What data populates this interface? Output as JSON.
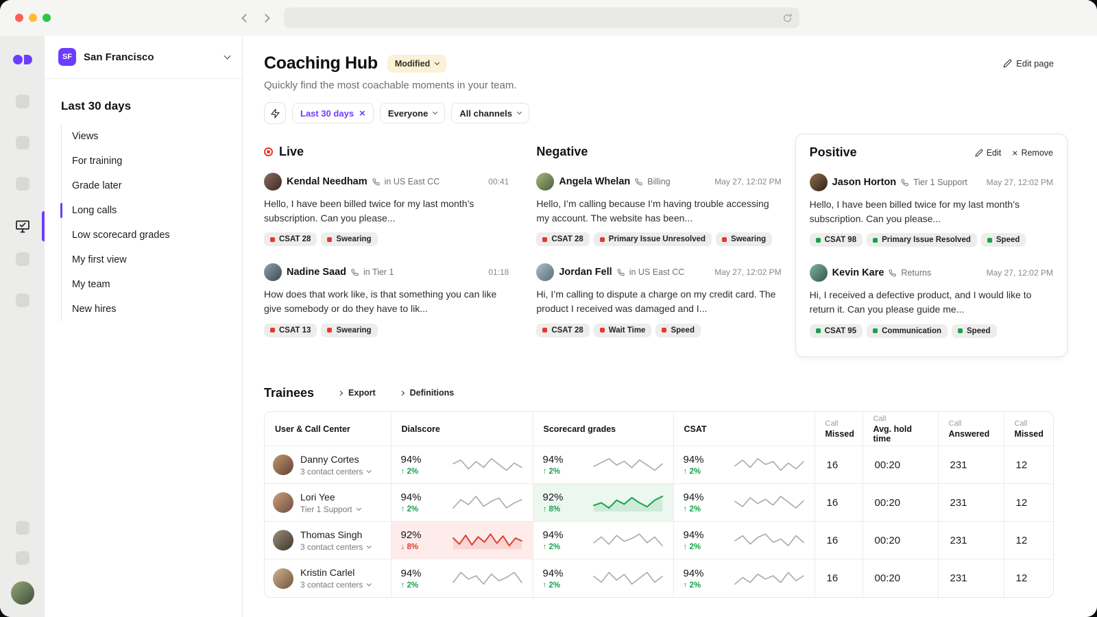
{
  "colors": {
    "accent": "#6C3DFF",
    "positive": "#17A24B",
    "negative": "#E23B2E",
    "warning_bg": "#FAF1D6"
  },
  "icons": {
    "close": "×",
    "up_arrow": "↑",
    "down_arrow": "↓"
  },
  "workspace": {
    "badge": "SF",
    "name": "San Francisco"
  },
  "sidebar": {
    "section_title": "Last 30 days",
    "items": [
      {
        "label": "Views"
      },
      {
        "label": "For training"
      },
      {
        "label": "Grade later"
      },
      {
        "label": "Long calls",
        "active": true
      },
      {
        "label": "Low scorecard grades"
      },
      {
        "label": "My first view"
      },
      {
        "label": "My team"
      },
      {
        "label": "New hires"
      }
    ]
  },
  "header": {
    "title": "Coaching Hub",
    "badge": "Modified",
    "subtitle": "Quickly find the most coachable moments in your team.",
    "edit_page": "Edit page"
  },
  "filters": {
    "chips": [
      {
        "label": "Last 30 days",
        "accent": true,
        "removable": true
      },
      {
        "label": "Everyone",
        "dropdown": true
      },
      {
        "label": "All channels",
        "dropdown": true
      }
    ]
  },
  "moments": [
    {
      "title": "Live",
      "live": true,
      "cards": [
        {
          "name": "Kendal Needham",
          "context": "in US East CC",
          "time": "00:41",
          "avatar": [
            "#8d6e63",
            "#3e2723"
          ],
          "text": "Hello, I have been billed twice for my last month’s subscription. Can you please...",
          "tags": [
            {
              "label": "CSAT 28",
              "tone": "negative"
            },
            {
              "label": "Swearing",
              "tone": "negative"
            }
          ]
        },
        {
          "name": "Nadine Saad",
          "context": "in Tier 1",
          "time": "01:18",
          "avatar": [
            "#90a4ae",
            "#37474f"
          ],
          "text": "How does that work like, is that something you can like give somebody or do they have to lik...",
          "tags": [
            {
              "label": "CSAT 13",
              "tone": "negative"
            },
            {
              "label": "Swearing",
              "tone": "negative"
            }
          ]
        }
      ]
    },
    {
      "title": "Negative",
      "cards": [
        {
          "name": "Angela Whelan",
          "context": "Billing",
          "time": "May 27, 12:02 PM",
          "avatar": [
            "#a5b97e",
            "#4e5d3a"
          ],
          "text": "Hello, I’m calling because I’m having trouble accessing my account. The website has been...",
          "tags": [
            {
              "label": "CSAT 28",
              "tone": "negative"
            },
            {
              "label": "Primary Issue Unresolved",
              "tone": "negative"
            },
            {
              "label": "Swearing",
              "tone": "negative"
            }
          ]
        },
        {
          "name": "Jordan Fell",
          "context": "in US East CC",
          "time": "May 27, 12:02 PM",
          "avatar": [
            "#b0bec5",
            "#546e7a"
          ],
          "text": "Hi, I’m calling to dispute a charge on my credit card. The product I received was damaged and I...",
          "tags": [
            {
              "label": "CSAT 28",
              "tone": "negative"
            },
            {
              "label": "Wait Time",
              "tone": "negative"
            },
            {
              "label": "Speed",
              "tone": "negative"
            }
          ]
        }
      ]
    },
    {
      "title": "Positive",
      "framed": true,
      "actions": {
        "edit": "Edit",
        "remove": "Remove"
      },
      "cards": [
        {
          "name": "Jason Horton",
          "context": "Tier 1 Support",
          "time": "May 27, 12:02 PM",
          "avatar": [
            "#8d7053",
            "#2e2014"
          ],
          "text": "Hello, I have been billed twice for my last month’s subscription. Can you please...",
          "tags": [
            {
              "label": "CSAT 98",
              "tone": "positive"
            },
            {
              "label": "Primary Issue Resolved",
              "tone": "positive"
            },
            {
              "label": "Speed",
              "tone": "positive"
            }
          ]
        },
        {
          "name": "Kevin Kare",
          "context": "Returns",
          "time": "May 27, 12:02 PM",
          "avatar": [
            "#7fb3a2",
            "#34544a"
          ],
          "text": "Hi, I received a defective product, and I would like to return it. Can you please guide me...",
          "tags": [
            {
              "label": "CSAT 95",
              "tone": "positive"
            },
            {
              "label": "Communication",
              "tone": "positive"
            },
            {
              "label": "Speed",
              "tone": "positive"
            }
          ]
        }
      ]
    }
  ],
  "trainees": {
    "title": "Trainees",
    "links": [
      "Export",
      "Definitions"
    ],
    "table": {
      "headers": [
        {
          "label": "User & Call Center"
        },
        {
          "label": "Dialscore"
        },
        {
          "label": "Scorecard grades"
        },
        {
          "label": "CSAT"
        },
        {
          "group": "Call",
          "label": "Missed"
        },
        {
          "group": "Call",
          "label": "Avg. hold time"
        },
        {
          "group": "Call",
          "label": "Answered"
        },
        {
          "group": "Call",
          "label": "Missed"
        }
      ],
      "rows": [
        {
          "name": "Danny Cortes",
          "sub": "3 contact centers",
          "avatar": [
            "#c49a6c",
            "#5d4037"
          ],
          "metrics": [
            {
              "value": "94%",
              "delta": "2%",
              "dir": "up",
              "tone": null,
              "spark": [
                55,
                60,
                48,
                58,
                50,
                62,
                54,
                46,
                56,
                50
              ]
            },
            {
              "value": "94%",
              "delta": "2%",
              "dir": "up",
              "tone": null,
              "spark": [
                50,
                56,
                62,
                52,
                58,
                48,
                60,
                52,
                44,
                54
              ]
            },
            {
              "value": "94%",
              "delta": "2%",
              "dir": "up",
              "tone": null,
              "spark": [
                52,
                60,
                50,
                62,
                54,
                58,
                46,
                56,
                48,
                58
              ]
            }
          ],
          "stats": [
            "16",
            "00:20",
            "231",
            "12"
          ]
        },
        {
          "name": "Lori Yee",
          "sub": "Tier 1 Support",
          "avatar": [
            "#caa27a",
            "#6d4c41"
          ],
          "metrics": [
            {
              "value": "94%",
              "delta": "2%",
              "dir": "up",
              "tone": null,
              "spark": [
                48,
                58,
                52,
                62,
                50,
                56,
                60,
                48,
                54,
                58
              ]
            },
            {
              "value": "92%",
              "delta": "8%",
              "dir": "up",
              "tone": "positive",
              "spark": [
                48,
                50,
                46,
                52,
                49,
                54,
                50,
                47,
                52,
                55
              ]
            },
            {
              "value": "94%",
              "delta": "2%",
              "dir": "up",
              "tone": null,
              "spark": [
                55,
                48,
                60,
                52,
                58,
                50,
                62,
                54,
                46,
                56
              ]
            }
          ],
          "stats": [
            "16",
            "00:20",
            "231",
            "12"
          ]
        },
        {
          "name": "Thomas Singh",
          "sub": "3 contact centers",
          "avatar": [
            "#9e8f7a",
            "#3e342a"
          ],
          "metrics": [
            {
              "value": "92%",
              "delta": "8%",
              "dir": "down",
              "tone": "negative",
              "spark": [
                55,
                40,
                62,
                38,
                58,
                45,
                65,
                42,
                60,
                36,
                55,
                48
              ]
            },
            {
              "value": "94%",
              "delta": "2%",
              "dir": "up",
              "tone": null,
              "spark": [
                50,
                58,
                48,
                60,
                52,
                56,
                62,
                50,
                58,
                46
              ]
            },
            {
              "value": "94%",
              "delta": "2%",
              "dir": "up",
              "tone": null,
              "spark": [
                54,
                60,
                50,
                58,
                62,
                52,
                56,
                48,
                60,
                52
              ]
            }
          ],
          "stats": [
            "16",
            "00:20",
            "231",
            "12"
          ]
        },
        {
          "name": "Kristin Carlel",
          "sub": "3 contact centers",
          "avatar": [
            "#d2b48c",
            "#70543e"
          ],
          "metrics": [
            {
              "value": "94%",
              "delta": "2%",
              "dir": "up",
              "tone": null,
              "spark": [
                50,
                62,
                54,
                58,
                48,
                60,
                52,
                56,
                62,
                50
              ]
            },
            {
              "value": "94%",
              "delta": "2%",
              "dir": "up",
              "tone": null,
              "spark": [
                56,
                50,
                60,
                52,
                58,
                48,
                54,
                60,
                50,
                56
              ]
            },
            {
              "value": "94%",
              "delta": "2%",
              "dir": "up",
              "tone": null,
              "spark": [
                48,
                56,
                50,
                60,
                54,
                58,
                50,
                62,
                52,
                58
              ]
            }
          ],
          "stats": [
            "16",
            "00:20",
            "231",
            "12"
          ]
        }
      ]
    }
  },
  "rail": {
    "user_avatar": [
      "#93a97c",
      "#3f4d35"
    ]
  }
}
